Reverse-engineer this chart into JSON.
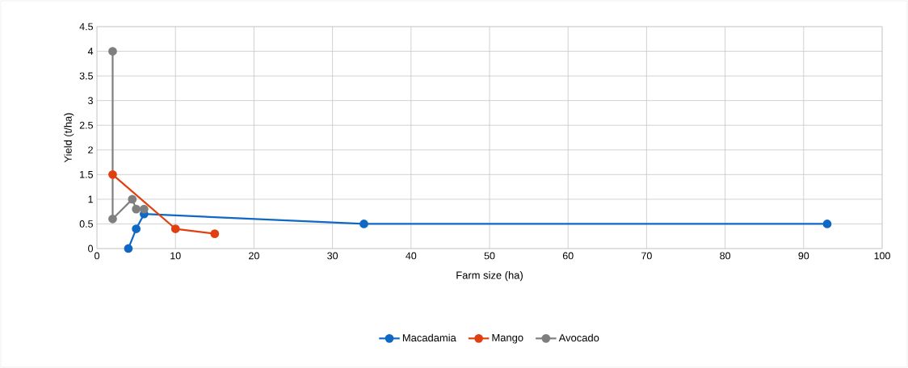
{
  "chart_data": {
    "type": "line",
    "xlabel": "Farm size (ha)",
    "ylabel": "Yield (t/ha)",
    "xlim": [
      0,
      100
    ],
    "xticks": [
      0,
      10,
      20,
      30,
      40,
      50,
      60,
      70,
      80,
      90,
      100
    ],
    "ylim": [
      0,
      4.5
    ],
    "yticks": [
      0,
      0.5,
      1,
      1.5,
      2,
      2.5,
      3,
      3.5,
      4,
      4.5
    ],
    "grid": true,
    "legend": "bottom",
    "marker": "circle",
    "line_style": "solid",
    "series": [
      {
        "name": "Macadamia",
        "color": "#0f68c4",
        "x": [
          4,
          5,
          6,
          34,
          93
        ],
        "values": [
          0,
          0.4,
          0.7,
          0.5,
          0.5
        ]
      },
      {
        "name": "Mango",
        "color": "#e04010",
        "x": [
          2,
          10,
          15
        ],
        "values": [
          1.5,
          0.4,
          0.3
        ]
      },
      {
        "name": "Avocado",
        "color": "#7f7f7f",
        "x": [
          2,
          2,
          4.5,
          5,
          6
        ],
        "values": [
          4,
          0.6,
          1,
          0.8,
          0.8
        ]
      }
    ]
  }
}
